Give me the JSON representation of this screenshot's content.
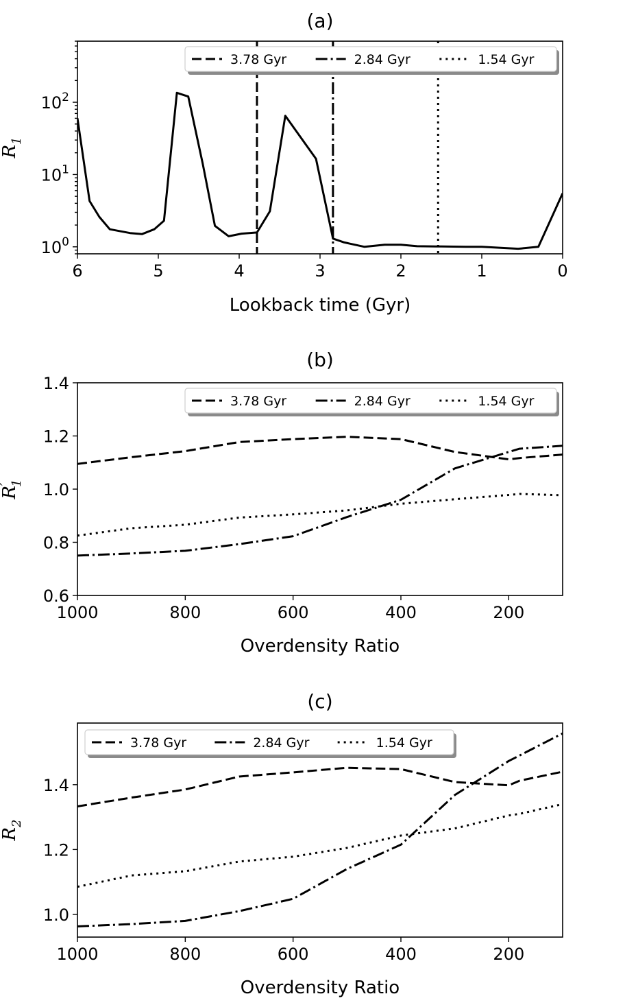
{
  "chart_data": [
    {
      "id": "a",
      "type": "line",
      "panel_label": "(a)",
      "xlabel": "Lookback time (Gyr)",
      "ylabel": "R",
      "ylabel_sub": "1",
      "yscale": "log",
      "xlim": [
        6,
        0
      ],
      "ylim": [
        0.8,
        700
      ],
      "xticks": [
        6,
        5,
        4,
        3,
        2,
        1,
        0
      ],
      "yticks": [
        {
          "value": 1,
          "base": "10",
          "exp": "0"
        },
        {
          "value": 10,
          "base": "10",
          "exp": "1"
        },
        {
          "value": 100,
          "base": "10",
          "exp": "2"
        }
      ],
      "series": [
        {
          "name": "R1",
          "style": "solid",
          "points": [
            [
              6.0,
              60
            ],
            [
              5.85,
              4.3
            ],
            [
              5.73,
              2.6
            ],
            [
              5.6,
              1.75
            ],
            [
              5.35,
              1.55
            ],
            [
              5.2,
              1.5
            ],
            [
              5.05,
              1.75
            ],
            [
              4.93,
              2.3
            ],
            [
              4.77,
              135
            ],
            [
              4.63,
              120
            ],
            [
              4.45,
              14
            ],
            [
              4.3,
              1.95
            ],
            [
              4.13,
              1.4
            ],
            [
              3.97,
              1.52
            ],
            [
              3.78,
              1.58
            ],
            [
              3.62,
              3.1
            ],
            [
              3.43,
              65
            ],
            [
              3.05,
              16.5
            ],
            [
              2.84,
              1.3
            ],
            [
              2.7,
              1.15
            ],
            [
              2.45,
              1.0
            ],
            [
              2.2,
              1.07
            ],
            [
              2.0,
              1.07
            ],
            [
              1.8,
              1.02
            ],
            [
              1.5,
              1.01
            ],
            [
              1.2,
              1.0
            ],
            [
              1.0,
              1.0
            ],
            [
              0.55,
              0.94
            ],
            [
              0.3,
              1.0
            ],
            [
              0.0,
              5.5
            ]
          ]
        }
      ],
      "vlines": [
        {
          "x": 3.78,
          "style": "dashed"
        },
        {
          "x": 2.84,
          "style": "dashdot"
        },
        {
          "x": 1.54,
          "style": "dotted"
        }
      ],
      "legend": {
        "placement": "upper right",
        "entries": [
          {
            "label": "3.78 Gyr",
            "style": "dashed"
          },
          {
            "label": "2.84 Gyr",
            "style": "dashdot"
          },
          {
            "label": "1.54 Gyr",
            "style": "dotted"
          }
        ]
      }
    },
    {
      "id": "b",
      "type": "line",
      "panel_label": "(b)",
      "xlabel": "Overdensity Ratio",
      "ylabel": "R",
      "ylabel_sub": "1",
      "ylabel_prime": true,
      "yscale": "linear",
      "xlim": [
        1000,
        100
      ],
      "ylim": [
        0.6,
        1.4
      ],
      "xticks": [
        1000,
        800,
        600,
        400,
        200
      ],
      "yticks": [
        {
          "value": 0.6,
          "label": "0.6"
        },
        {
          "value": 0.8,
          "label": "0.8"
        },
        {
          "value": 1.0,
          "label": "1.0"
        },
        {
          "value": 1.2,
          "label": "1.2"
        },
        {
          "value": 1.4,
          "label": "1.4"
        }
      ],
      "series": [
        {
          "name": "3.78 Gyr",
          "style": "dashed",
          "points": [
            [
              1000,
              1.095
            ],
            [
              900,
              1.12
            ],
            [
              800,
              1.143
            ],
            [
              700,
              1.177
            ],
            [
              600,
              1.188
            ],
            [
              500,
              1.197
            ],
            [
              400,
              1.188
            ],
            [
              300,
              1.14
            ],
            [
              200,
              1.112
            ],
            [
              180,
              1.117
            ],
            [
              100,
              1.13
            ]
          ]
        },
        {
          "name": "2.84 Gyr",
          "style": "dashdot",
          "points": [
            [
              1000,
              0.75
            ],
            [
              900,
              0.758
            ],
            [
              800,
              0.768
            ],
            [
              700,
              0.793
            ],
            [
              600,
              0.823
            ],
            [
              500,
              0.895
            ],
            [
              400,
              0.96
            ],
            [
              300,
              1.078
            ],
            [
              200,
              1.14
            ],
            [
              180,
              1.152
            ],
            [
              100,
              1.163
            ]
          ]
        },
        {
          "name": "1.54 Gyr",
          "style": "dotted",
          "points": [
            [
              1000,
              0.825
            ],
            [
              900,
              0.853
            ],
            [
              800,
              0.866
            ],
            [
              700,
              0.893
            ],
            [
              600,
              0.905
            ],
            [
              500,
              0.92
            ],
            [
              400,
              0.945
            ],
            [
              300,
              0.962
            ],
            [
              200,
              0.978
            ],
            [
              180,
              0.982
            ],
            [
              100,
              0.977
            ]
          ]
        }
      ],
      "legend": {
        "placement": "upper right",
        "entries": [
          {
            "label": "3.78 Gyr",
            "style": "dashed"
          },
          {
            "label": "2.84 Gyr",
            "style": "dashdot"
          },
          {
            "label": "1.54 Gyr",
            "style": "dotted"
          }
        ]
      }
    },
    {
      "id": "c",
      "type": "line",
      "panel_label": "(c)",
      "xlabel": "Overdensity Ratio",
      "ylabel": "R",
      "ylabel_sub": "2",
      "yscale": "linear",
      "xlim": [
        1000,
        100
      ],
      "ylim": [
        0.93,
        1.59
      ],
      "xticks": [
        1000,
        800,
        600,
        400,
        200
      ],
      "yticks": [
        {
          "value": 1.0,
          "label": "1.0"
        },
        {
          "value": 1.2,
          "label": "1.2"
        },
        {
          "value": 1.4,
          "label": "1.4"
        }
      ],
      "series": [
        {
          "name": "3.78 Gyr",
          "style": "dashed",
          "points": [
            [
              1000,
              1.333
            ],
            [
              900,
              1.36
            ],
            [
              800,
              1.385
            ],
            [
              700,
              1.425
            ],
            [
              600,
              1.438
            ],
            [
              500,
              1.452
            ],
            [
              400,
              1.448
            ],
            [
              300,
              1.408
            ],
            [
              200,
              1.398
            ],
            [
              180,
              1.412
            ],
            [
              100,
              1.44
            ]
          ]
        },
        {
          "name": "2.84 Gyr",
          "style": "dashdot",
          "points": [
            [
              1000,
              0.963
            ],
            [
              900,
              0.97
            ],
            [
              800,
              0.98
            ],
            [
              700,
              1.01
            ],
            [
              600,
              1.048
            ],
            [
              500,
              1.14
            ],
            [
              400,
              1.215
            ],
            [
              300,
              1.368
            ],
            [
              200,
              1.473
            ],
            [
              180,
              1.49
            ],
            [
              100,
              1.558
            ]
          ]
        },
        {
          "name": "1.54 Gyr",
          "style": "dotted",
          "points": [
            [
              1000,
              1.085
            ],
            [
              900,
              1.12
            ],
            [
              800,
              1.133
            ],
            [
              700,
              1.163
            ],
            [
              600,
              1.178
            ],
            [
              500,
              1.205
            ],
            [
              400,
              1.243
            ],
            [
              300,
              1.265
            ],
            [
              200,
              1.305
            ],
            [
              180,
              1.31
            ],
            [
              100,
              1.34
            ]
          ]
        }
      ],
      "legend": {
        "placement": "upper left",
        "entries": [
          {
            "label": "3.78 Gyr",
            "style": "dashed"
          },
          {
            "label": "2.84 Gyr",
            "style": "dashdot"
          },
          {
            "label": "1.54 Gyr",
            "style": "dotted"
          }
        ]
      }
    }
  ]
}
